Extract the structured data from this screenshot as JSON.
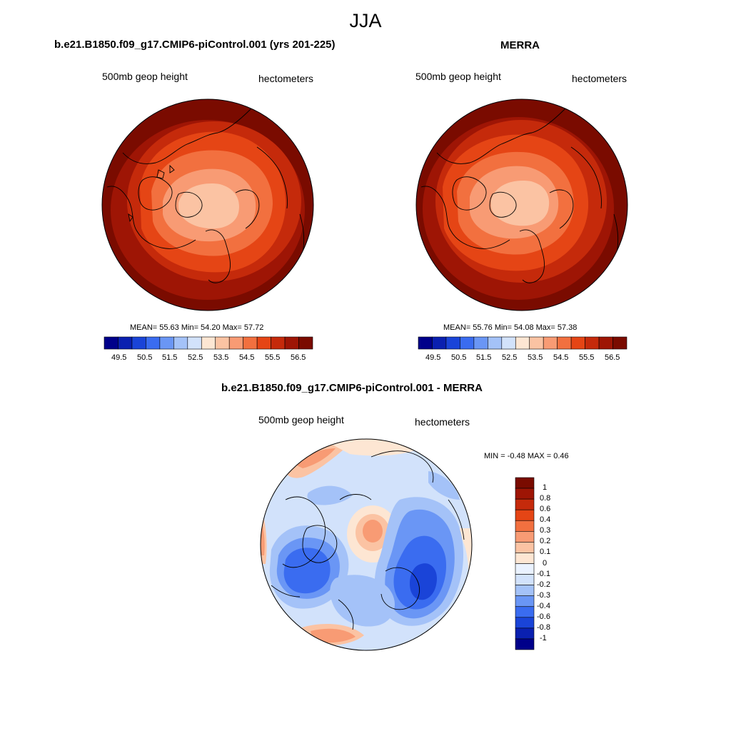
{
  "header": {
    "title": "JJA"
  },
  "panels": [
    {
      "id": "model",
      "title": "b.e21.B1850.f09_g17.CMIP6-piControl.001 (yrs 201-225)",
      "left_label": "500mb geop height",
      "right_label": "hectometers",
      "stats": "MEAN=  55.63  Min=  54.20  Max=  57.72",
      "colorbar_ticks": [
        "49.5",
        "50.5",
        "51.5",
        "52.5",
        "53.5",
        "54.5",
        "55.5",
        "56.5"
      ]
    },
    {
      "id": "merra",
      "title": "MERRA",
      "left_label": "500mb geop height",
      "right_label": "hectometers",
      "stats": "MEAN=  55.76  Min=  54.08  Max=  57.38",
      "colorbar_ticks": [
        "49.5",
        "50.5",
        "51.5",
        "52.5",
        "53.5",
        "54.5",
        "55.5",
        "56.5"
      ]
    },
    {
      "id": "diff",
      "title": "b.e21.B1850.f09_g17.CMIP6-piControl.001 - MERRA",
      "left_label": "500mb geop height",
      "right_label": "hectometers",
      "stats": "MIN =  -0.48 MAX =   0.46",
      "colorbar_ticks": [
        "1",
        "0.8",
        "0.6",
        "0.4",
        "0.3",
        "0.2",
        "0.1",
        "0",
        "-0.1",
        "-0.2",
        "-0.3",
        "-0.4",
        "-0.6",
        "-0.8",
        "-1"
      ]
    }
  ],
  "colors": {
    "abs_scale": [
      "#00008a",
      "#0a20b0",
      "#1a44d8",
      "#3a6cf0",
      "#6a96f5",
      "#a4c2f8",
      "#d2e2fb",
      "#fde6d3",
      "#fbc3a3",
      "#f89b74",
      "#f2703f",
      "#e54515",
      "#c52a0b",
      "#9e1505",
      "#7a0b00"
    ],
    "diff_scale": [
      "#00008a",
      "#0a20b0",
      "#1a44d8",
      "#3a6cf0",
      "#6a96f5",
      "#a4c2f8",
      "#d2e2fb",
      "#eaf2ff",
      "#fde6d3",
      "#fbc3a3",
      "#f89b74",
      "#f2703f",
      "#e54515",
      "#c52a0b",
      "#9e1505",
      "#7a0b00"
    ]
  }
}
